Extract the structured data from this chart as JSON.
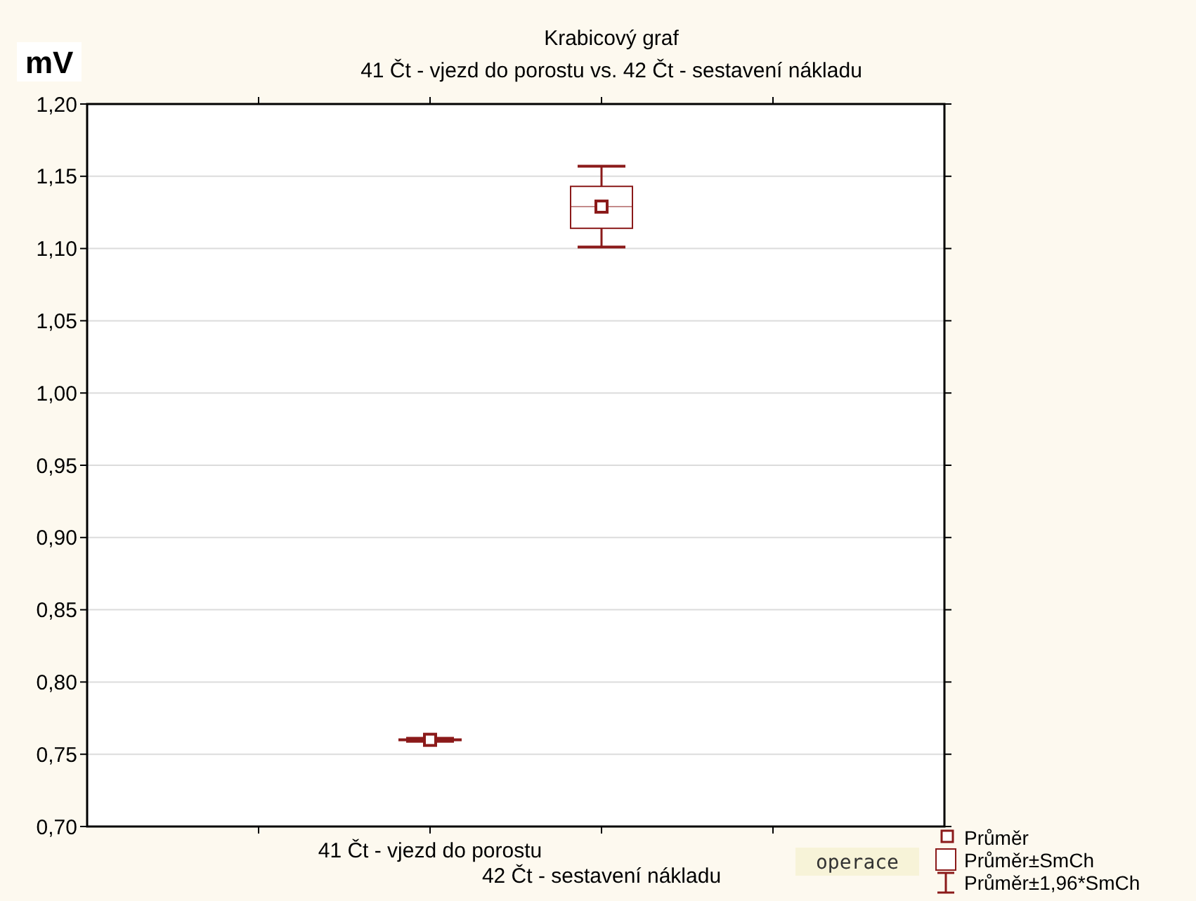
{
  "chart_data": {
    "type": "box",
    "title": "Krabicový graf",
    "subtitle": "41 Čt - vjezd do porostu vs. 42 Čt - sestavení nákladu",
    "ylabel": "mV",
    "categories": [
      "41 Čt - vjezd do porostu",
      "42 Čt - sestavení nákladu"
    ],
    "color": "#8b1a1a",
    "boxes": [
      {
        "low": 0.759,
        "q1": 0.7595,
        "median": 0.76,
        "q3": 0.7605,
        "high": 0.761,
        "mean": 0.76
      },
      {
        "low": 1.101,
        "q1": 1.114,
        "median": 1.129,
        "q3": 1.143,
        "high": 1.157,
        "mean": 1.129
      }
    ],
    "ylim": [
      0.7,
      1.2
    ],
    "yticks": [
      {
        "value": 0.7,
        "label": "0,70"
      },
      {
        "value": 0.75,
        "label": "0,75"
      },
      {
        "value": 0.8,
        "label": "0,80"
      },
      {
        "value": 0.85,
        "label": "0,85"
      },
      {
        "value": 0.9,
        "label": "0,90"
      },
      {
        "value": 0.95,
        "label": "0,95"
      },
      {
        "value": 1.0,
        "label": "1,00"
      },
      {
        "value": 1.05,
        "label": "1,05"
      },
      {
        "value": 1.1,
        "label": "1,10"
      },
      {
        "value": 1.15,
        "label": "1,15"
      },
      {
        "value": 1.2,
        "label": "1,20"
      }
    ],
    "grid": "y",
    "legend_title": "operace",
    "annotations": [
      "Průměr",
      "Průměr±SmCh",
      "Průměr±1,96*SmCh"
    ]
  }
}
